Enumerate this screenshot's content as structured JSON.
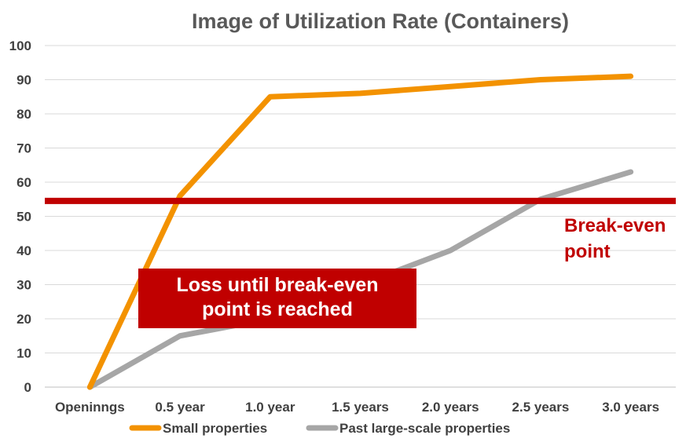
{
  "chart_data": {
    "type": "line",
    "title": "Image of Utilization Rate (Containers)",
    "categories": [
      "Openinngs",
      "0.5 year",
      "1.0 year",
      "1.5 years",
      "2.0 years",
      "2.5 years",
      "3.0 years"
    ],
    "y_ticks": [
      "0",
      "10",
      "20",
      "30",
      "40",
      "50",
      "60",
      "70",
      "80",
      "90",
      "100"
    ],
    "ylim": [
      0,
      100
    ],
    "grid": true,
    "legend_position": "bottom",
    "series": [
      {
        "name": "Small properties",
        "color": "#f39200",
        "values": [
          0,
          56,
          85,
          86,
          88,
          90,
          91
        ]
      },
      {
        "name": "Past large-scale properties",
        "color": "#a6a6a6",
        "values": [
          0,
          15,
          20,
          30,
          40,
          55,
          63
        ]
      }
    ],
    "break_even": {
      "value": 54.5,
      "color": "#c00000",
      "label_line1": "Break-even",
      "label_line2": "point"
    },
    "loss_box": {
      "line1": "Loss until break-even",
      "line2": "point is reached",
      "color": "#c00000"
    }
  }
}
